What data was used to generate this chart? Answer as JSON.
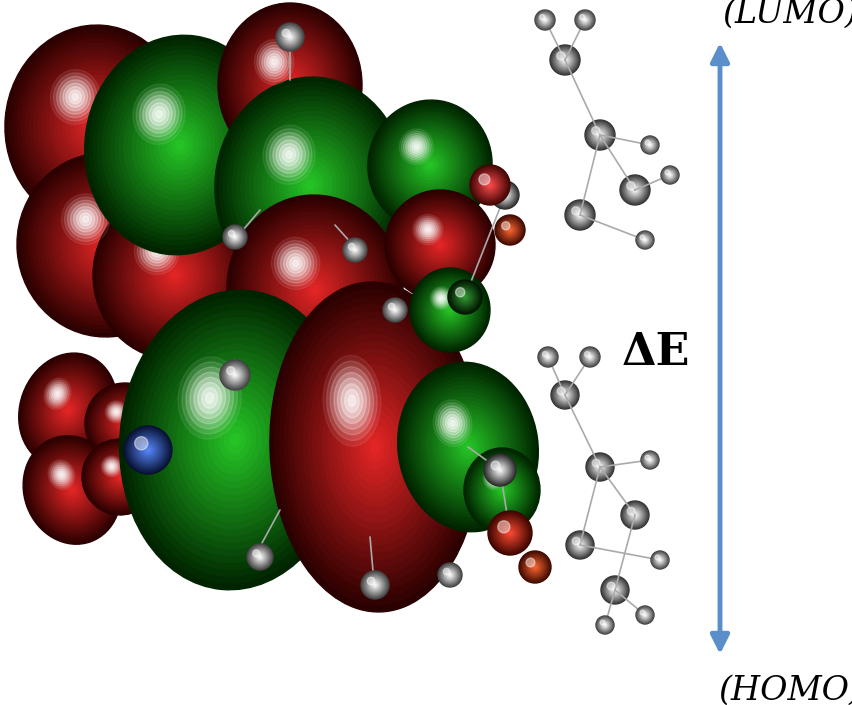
{
  "bg_color": "#ffffff",
  "lumo_label": "(LUMO)",
  "homo_label": "(HOMO)",
  "delta_e_label": "ΔE",
  "arrow_color": "#5b8fc9",
  "label_fontsize": 24,
  "delta_fontsize": 32,
  "fig_w": 8.53,
  "fig_h": 7.05,
  "dpi": 100
}
